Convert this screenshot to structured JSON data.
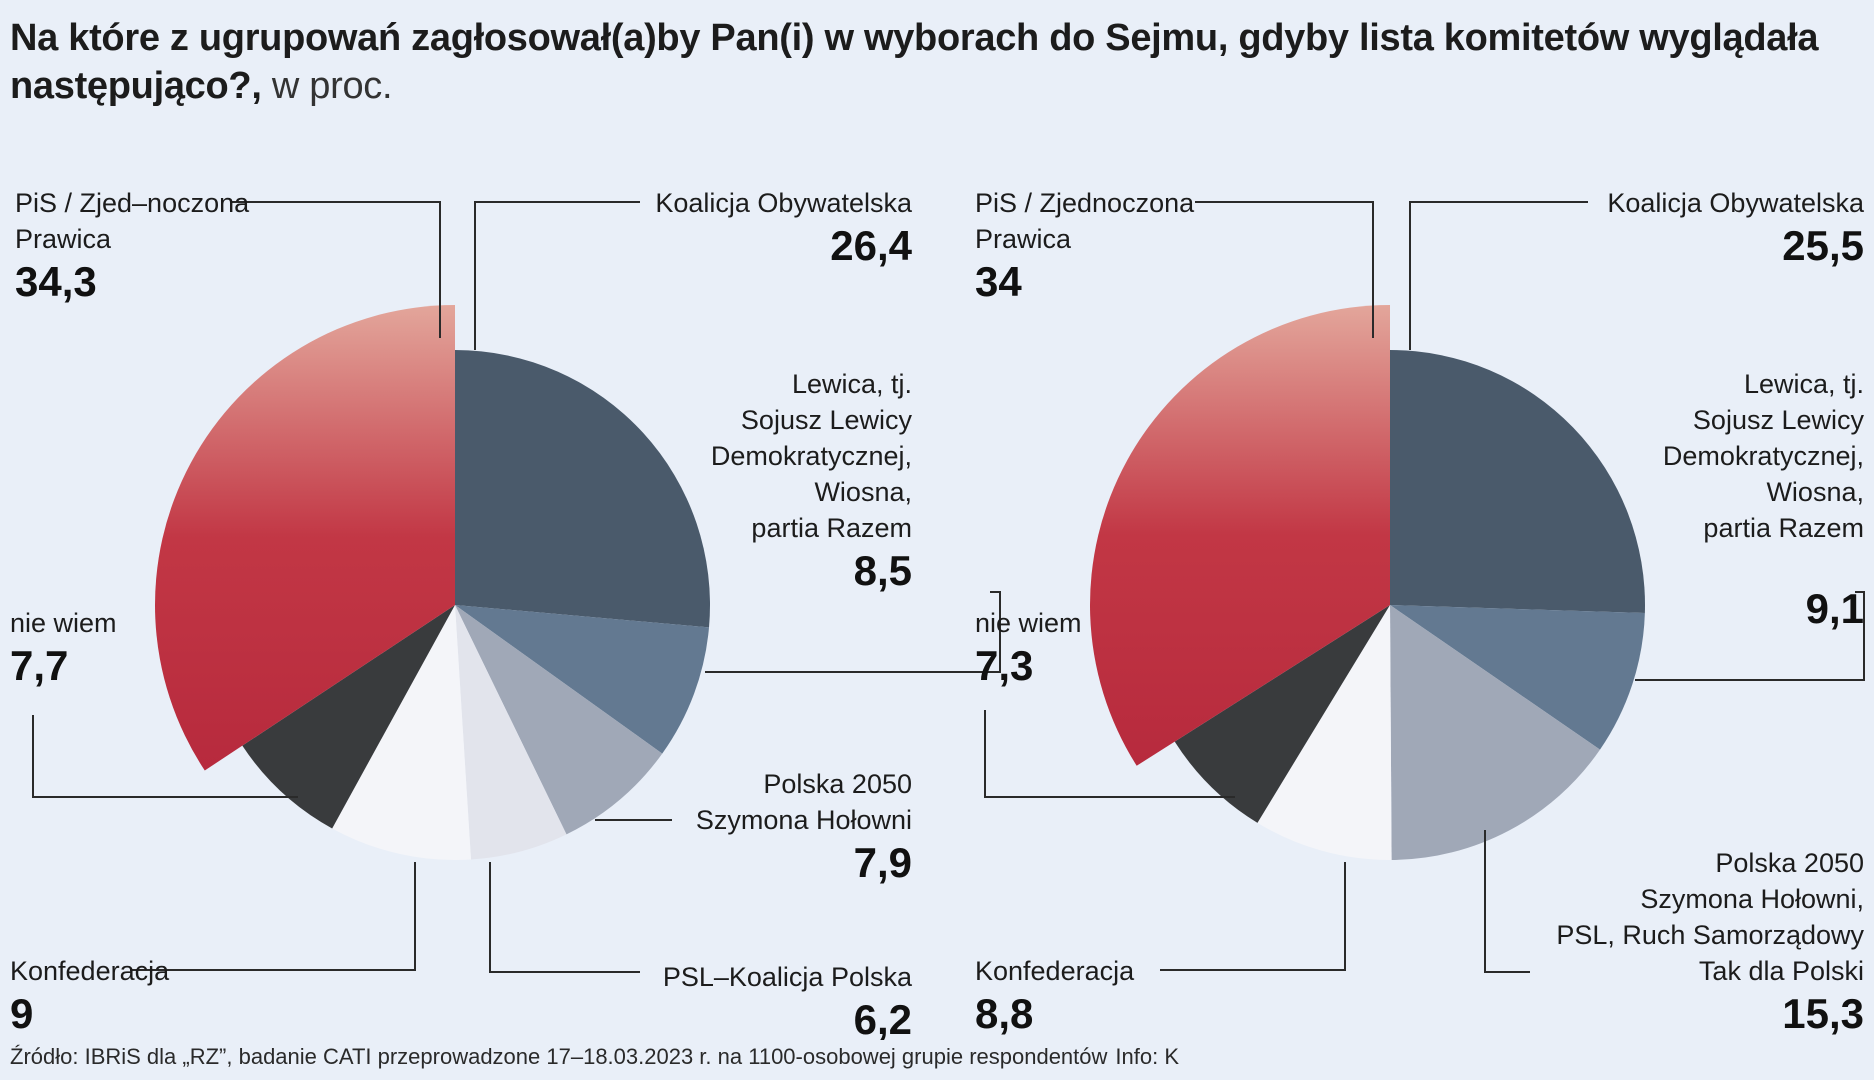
{
  "header": {
    "title": "Na które z ugrupowań zagłosował(a)by Pan(i) w wyborach do Sejmu, gdyby lista komitetów wyglądała następująco?,",
    "unit": "w proc."
  },
  "footer": {
    "source": "Źródło: IBRiS dla „RZ”, badanie CATI przeprowadzone 17–18.03.2023 r. na 1100-osobowej grupie respondentów",
    "info": "Info: K"
  },
  "colors": {
    "pis": "#c12d3f",
    "ko": "#4a5a6b",
    "lewica": "#637991",
    "polska2050": "#a0a8b7",
    "psl": "#e2e4ec",
    "konfederacja": "#f4f5f9",
    "niewiem": "#393b3d"
  },
  "chart_data": [
    {
      "type": "pie",
      "title": "",
      "slices": [
        {
          "key": "ko",
          "label_lines": [
            "Koalicja Obywatelska"
          ],
          "value": 26.4,
          "value_label": "26,4"
        },
        {
          "key": "lewica",
          "label_lines": [
            "Lewica, tj.",
            "Sojusz Lewicy",
            "Demokratycznej,",
            "Wiosna,",
            "partia Razem"
          ],
          "value": 8.5,
          "value_label": "8,5"
        },
        {
          "key": "polska2050",
          "label_lines": [
            "Polska 2050",
            "Szymona Hołowni"
          ],
          "value": 7.9,
          "value_label": "7,9"
        },
        {
          "key": "psl",
          "label_lines": [
            "PSL–Koalicja Polska"
          ],
          "value": 6.2,
          "value_label": "6,2"
        },
        {
          "key": "konfederacja",
          "label_lines": [
            "Konfederacja"
          ],
          "value": 9,
          "value_label": "9"
        },
        {
          "key": "niewiem",
          "label_lines": [
            "nie wiem"
          ],
          "value": 7.7,
          "value_label": "7,7"
        },
        {
          "key": "pis",
          "label_lines": [
            "PiS / Zjed–noczona",
            "Prawica"
          ],
          "value": 34.3,
          "value_label": "34,3"
        }
      ]
    },
    {
      "type": "pie",
      "title": "",
      "slices": [
        {
          "key": "ko",
          "label_lines": [
            "Koalicja Obywatelska"
          ],
          "value": 25.5,
          "value_label": "25,5"
        },
        {
          "key": "lewica",
          "label_lines": [
            "Lewica, tj.",
            "Sojusz Lewicy",
            "Demokratycznej,",
            "Wiosna,",
            "partia Razem"
          ],
          "value": 9.1,
          "value_label": "9,1"
        },
        {
          "key": "polska2050",
          "label_lines": [
            "Polska 2050",
            "Szymona Hołowni,",
            "PSL, Ruch Samorządowy",
            "Tak dla Polski"
          ],
          "value": 15.3,
          "value_label": "15,3"
        },
        {
          "key": "konfederacja",
          "label_lines": [
            "Konfederacja"
          ],
          "value": 8.8,
          "value_label": "8,8"
        },
        {
          "key": "niewiem",
          "label_lines": [
            "nie wiem"
          ],
          "value": 7.3,
          "value_label": "7,3"
        },
        {
          "key": "pis",
          "label_lines": [
            "PiS / Zjednoczona",
            "Prawica"
          ],
          "value": 34,
          "value_label": "34"
        }
      ]
    }
  ]
}
